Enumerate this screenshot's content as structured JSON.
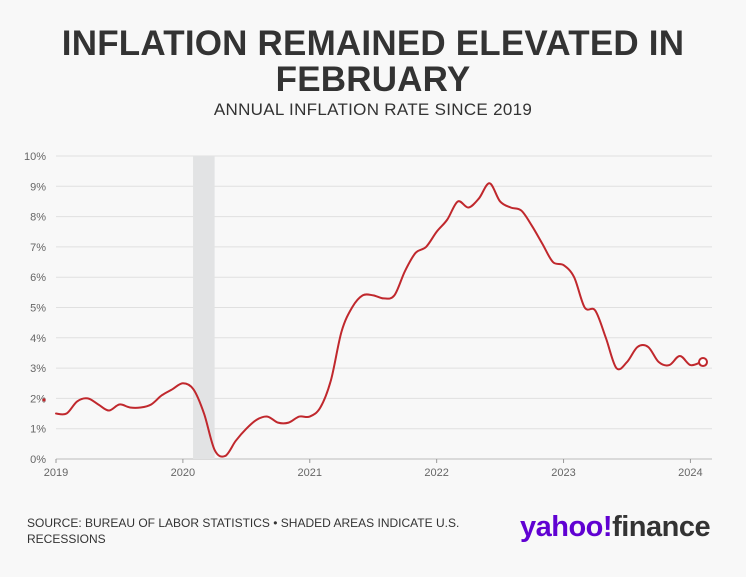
{
  "header": {
    "title_line1": "INFLATION REMAINED ELEVATED IN",
    "title_line2": "FEBRUARY",
    "subtitle": "ANNUAL INFLATION RATE SINCE 2019"
  },
  "footer": {
    "source": "SOURCE: BUREAU OF LABOR STATISTICS • SHADED AREAS INDICATE U.S. RECESSIONS",
    "logo_yahoo": "yahoo!",
    "logo_finance": "finance"
  },
  "colors": {
    "line": "#c0282d",
    "recession": "#e2e3e4",
    "grid": "#e0e0e0",
    "brand": "#6001d2"
  },
  "chart_data": {
    "type": "line",
    "title": "INFLATION REMAINED ELEVATED IN FEBRUARY",
    "subtitle": "ANNUAL INFLATION RATE SINCE 2019",
    "xlabel": "",
    "ylabel": "",
    "y_tick_labels": [
      "0%",
      "1%",
      "2%",
      "3%",
      "4%",
      "5%",
      "6%",
      "7%",
      "8%",
      "9%",
      "10%"
    ],
    "ylim": [
      0,
      10
    ],
    "x_tick_labels": [
      "2019",
      "2020",
      "2021",
      "2022",
      "2023",
      "2024"
    ],
    "xlim": [
      2019.0,
      2024.17
    ],
    "grid": true,
    "recession_shading": [
      [
        2020.08,
        2020.25
      ]
    ],
    "series": [
      {
        "name": "Annual inflation rate (%)",
        "x_start": 2019.0,
        "x_step_months": 1,
        "values": [
          1.5,
          1.5,
          1.9,
          2.0,
          1.8,
          1.6,
          1.8,
          1.7,
          1.7,
          1.8,
          2.1,
          2.3,
          2.5,
          2.3,
          1.5,
          0.3,
          0.1,
          0.6,
          1.0,
          1.3,
          1.4,
          1.2,
          1.2,
          1.4,
          1.4,
          1.7,
          2.6,
          4.2,
          5.0,
          5.4,
          5.4,
          5.3,
          5.4,
          6.2,
          6.8,
          7.0,
          7.5,
          7.9,
          8.5,
          8.3,
          8.6,
          9.1,
          8.5,
          8.3,
          8.2,
          7.7,
          7.1,
          6.5,
          6.4,
          6.0,
          5.0,
          4.9,
          4.0,
          3.0,
          3.2,
          3.7,
          3.7,
          3.2,
          3.1,
          3.4,
          3.1,
          3.2
        ]
      }
    ],
    "last_point_marker": true
  }
}
